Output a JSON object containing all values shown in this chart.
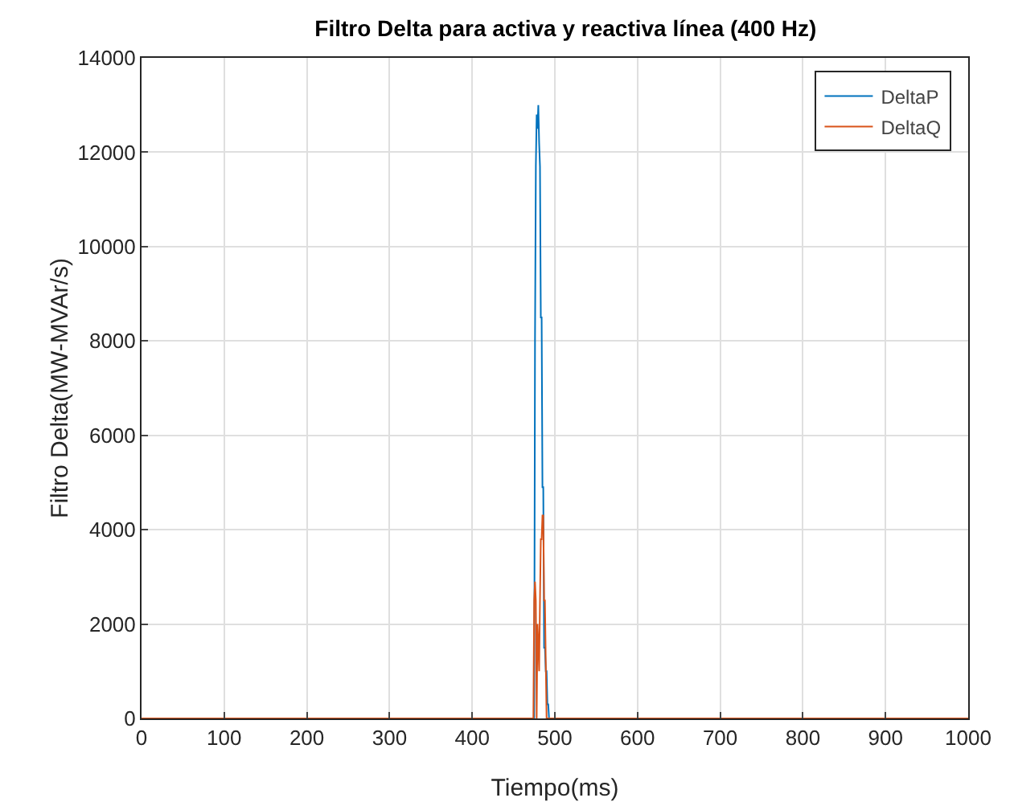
{
  "chart_data": {
    "type": "line",
    "title": "Filtro Delta para activa y reactiva línea (400 Hz)",
    "xlabel": "Tiempo(ms)",
    "ylabel": "Filtro Delta(MW-MVAr/s)",
    "xlim": [
      0,
      1000
    ],
    "ylim": [
      0,
      14000
    ],
    "xticks": [
      0,
      100,
      200,
      300,
      400,
      500,
      600,
      700,
      800,
      900,
      1000
    ],
    "yticks": [
      0,
      2000,
      4000,
      6000,
      8000,
      10000,
      12000,
      14000
    ],
    "grid": true,
    "legend": "top right",
    "line_style": "solid",
    "series": [
      {
        "name": "DeltaP",
        "color": "#0072bd",
        "x": [
          0,
          475,
          476,
          477,
          478,
          479,
          480,
          481,
          482,
          483,
          484,
          485,
          486,
          487,
          488,
          489,
          490,
          491,
          492,
          493,
          1000
        ],
        "values": [
          0,
          0,
          8000,
          11700,
          12800,
          12500,
          13000,
          12200,
          11700,
          8500,
          8500,
          4900,
          4900,
          1500,
          1500,
          1000,
          1000,
          300,
          300,
          0,
          0
        ]
      },
      {
        "name": "DeltaQ",
        "color": "#d95319",
        "x": [
          0,
          474,
          475,
          476,
          477,
          478,
          479,
          480,
          481,
          482,
          483,
          484,
          485,
          486,
          487,
          488,
          489,
          490,
          491,
          1000
        ],
        "values": [
          0,
          0,
          2500,
          2900,
          2500,
          0,
          2000,
          1600,
          1000,
          2500,
          3800,
          3800,
          4300,
          4300,
          2500,
          2500,
          1200,
          0,
          0,
          0
        ]
      }
    ]
  }
}
